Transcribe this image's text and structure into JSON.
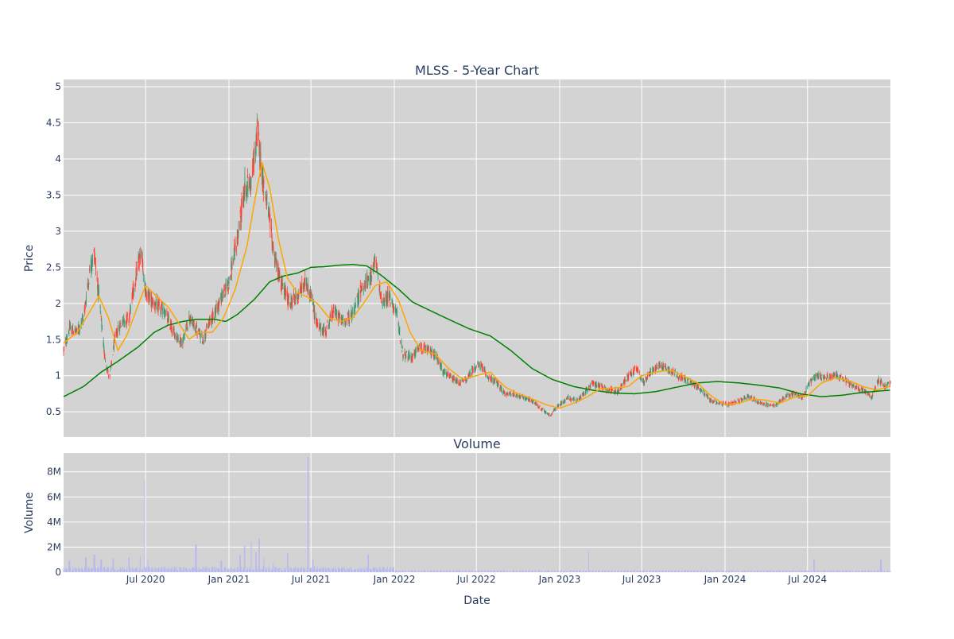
{
  "chart_data": [
    {
      "type": "candlestick",
      "title": "MLSS - 5-Year Chart",
      "xlabel": "",
      "ylabel": "Price",
      "ylim": [
        0.15,
        5.1
      ],
      "x_range": [
        "2020-01-02",
        "2024-12-31"
      ],
      "y_ticks": [
        "0.5",
        "1",
        "1.5",
        "2",
        "2.5",
        "3",
        "3.5",
        "4",
        "4.5",
        "5"
      ],
      "grid": true,
      "legend": "none",
      "colors": {
        "plot_bg": "#d3d3d3",
        "grid": "#ffffff",
        "increasing": "#3d9970",
        "decreasing": "#ff4136",
        "ma_short": "#ffa500",
        "ma_long": "#008000"
      },
      "price_anchors": [
        [
          "2020-01-02",
          1.35
        ],
        [
          "2020-01-15",
          1.65
        ],
        [
          "2020-02-01",
          1.6
        ],
        [
          "2020-02-15",
          1.8
        ],
        [
          "2020-03-01",
          2.5
        ],
        [
          "2020-03-10",
          2.7
        ],
        [
          "2020-03-20",
          2.1
        ],
        [
          "2020-04-01",
          1.3
        ],
        [
          "2020-04-12",
          0.95
        ],
        [
          "2020-04-25",
          1.55
        ],
        [
          "2020-05-10",
          1.75
        ],
        [
          "2020-05-25",
          1.8
        ],
        [
          "2020-06-10",
          2.4
        ],
        [
          "2020-06-22",
          2.75
        ],
        [
          "2020-07-01",
          2.15
        ],
        [
          "2020-07-20",
          2.0
        ],
        [
          "2020-08-10",
          1.9
        ],
        [
          "2020-09-01",
          1.6
        ],
        [
          "2020-09-20",
          1.45
        ],
        [
          "2020-10-05",
          1.8
        ],
        [
          "2020-10-20",
          1.65
        ],
        [
          "2020-11-05",
          1.5
        ],
        [
          "2020-11-20",
          1.75
        ],
        [
          "2020-12-10",
          2.0
        ],
        [
          "2021-01-01",
          2.3
        ],
        [
          "2021-01-20",
          2.9
        ],
        [
          "2021-02-05",
          3.6
        ],
        [
          "2021-02-20",
          3.7
        ],
        [
          "2021-03-05",
          4.4
        ],
        [
          "2021-03-15",
          3.8
        ],
        [
          "2021-03-28",
          3.3
        ],
        [
          "2021-04-10",
          2.7
        ],
        [
          "2021-04-25",
          2.3
        ],
        [
          "2021-05-15",
          2.0
        ],
        [
          "2021-06-01",
          2.1
        ],
        [
          "2021-06-20",
          2.3
        ],
        [
          "2021-07-01",
          2.1
        ],
        [
          "2021-07-15",
          1.7
        ],
        [
          "2021-08-01",
          1.6
        ],
        [
          "2021-08-20",
          1.9
        ],
        [
          "2021-09-10",
          1.75
        ],
        [
          "2021-10-01",
          1.85
        ],
        [
          "2021-10-20",
          2.2
        ],
        [
          "2021-11-05",
          2.3
        ],
        [
          "2021-11-20",
          2.6
        ],
        [
          "2021-12-05",
          2.0
        ],
        [
          "2021-12-20",
          2.1
        ],
        [
          "2022-01-05",
          1.9
        ],
        [
          "2022-01-20",
          1.3
        ],
        [
          "2022-02-10",
          1.25
        ],
        [
          "2022-02-25",
          1.4
        ],
        [
          "2022-03-15",
          1.35
        ],
        [
          "2022-04-01",
          1.3
        ],
        [
          "2022-04-20",
          1.05
        ],
        [
          "2022-05-10",
          0.95
        ],
        [
          "2022-05-25",
          0.9
        ],
        [
          "2022-06-10",
          0.95
        ],
        [
          "2022-06-25",
          1.1
        ],
        [
          "2022-07-10",
          1.15
        ],
        [
          "2022-07-25",
          1.0
        ],
        [
          "2022-08-15",
          0.9
        ],
        [
          "2022-09-01",
          0.75
        ],
        [
          "2022-09-20",
          0.75
        ],
        [
          "2022-10-10",
          0.7
        ],
        [
          "2022-11-01",
          0.65
        ],
        [
          "2022-11-20",
          0.55
        ],
        [
          "2022-12-10",
          0.45
        ],
        [
          "2023-01-01",
          0.6
        ],
        [
          "2023-01-20",
          0.7
        ],
        [
          "2023-02-10",
          0.65
        ],
        [
          "2023-03-01",
          0.8
        ],
        [
          "2023-03-15",
          0.9
        ],
        [
          "2023-04-01",
          0.85
        ],
        [
          "2023-04-20",
          0.8
        ],
        [
          "2023-05-10",
          0.78
        ],
        [
          "2023-06-01",
          1.0
        ],
        [
          "2023-06-20",
          1.1
        ],
        [
          "2023-07-05",
          0.9
        ],
        [
          "2023-07-20",
          1.05
        ],
        [
          "2023-08-10",
          1.15
        ],
        [
          "2023-08-25",
          1.1
        ],
        [
          "2023-09-10",
          1.05
        ],
        [
          "2023-10-01",
          0.95
        ],
        [
          "2023-10-20",
          0.9
        ],
        [
          "2023-11-10",
          0.8
        ],
        [
          "2023-12-01",
          0.65
        ],
        [
          "2023-12-20",
          0.62
        ],
        [
          "2024-01-10",
          0.6
        ],
        [
          "2024-02-01",
          0.65
        ],
        [
          "2024-02-20",
          0.72
        ],
        [
          "2024-03-10",
          0.65
        ],
        [
          "2024-04-01",
          0.6
        ],
        [
          "2024-04-20",
          0.58
        ],
        [
          "2024-05-10",
          0.7
        ],
        [
          "2024-06-01",
          0.75
        ],
        [
          "2024-06-20",
          0.7
        ],
        [
          "2024-07-05",
          0.9
        ],
        [
          "2024-07-20",
          1.0
        ],
        [
          "2024-08-10",
          0.98
        ],
        [
          "2024-09-01",
          1.0
        ],
        [
          "2024-09-20",
          0.95
        ],
        [
          "2024-10-10",
          0.85
        ],
        [
          "2024-11-01",
          0.8
        ],
        [
          "2024-11-20",
          0.7
        ],
        [
          "2024-12-05",
          0.95
        ],
        [
          "2024-12-20",
          0.85
        ],
        [
          "2024-12-31",
          0.9
        ]
      ],
      "ma_short_anchors": [
        [
          "2020-01-02",
          1.45
        ],
        [
          "2020-02-01",
          1.6
        ],
        [
          "2020-03-01",
          1.9
        ],
        [
          "2020-03-20",
          2.1
        ],
        [
          "2020-04-10",
          1.8
        ],
        [
          "2020-05-01",
          1.35
        ],
        [
          "2020-05-20",
          1.55
        ],
        [
          "2020-06-10",
          1.9
        ],
        [
          "2020-07-01",
          2.25
        ],
        [
          "2020-07-25",
          2.1
        ],
        [
          "2020-08-20",
          1.95
        ],
        [
          "2020-09-15",
          1.7
        ],
        [
          "2020-10-05",
          1.5
        ],
        [
          "2020-10-25",
          1.6
        ],
        [
          "2020-11-25",
          1.6
        ],
        [
          "2020-12-20",
          1.8
        ],
        [
          "2021-01-15",
          2.2
        ],
        [
          "2021-02-10",
          2.8
        ],
        [
          "2021-03-01",
          3.5
        ],
        [
          "2021-03-15",
          3.95
        ],
        [
          "2021-04-01",
          3.6
        ],
        [
          "2021-04-20",
          2.9
        ],
        [
          "2021-05-10",
          2.35
        ],
        [
          "2021-06-01",
          2.15
        ],
        [
          "2021-06-20",
          2.1
        ],
        [
          "2021-07-15",
          2.0
        ],
        [
          "2021-08-10",
          1.8
        ],
        [
          "2021-09-05",
          1.75
        ],
        [
          "2021-10-01",
          1.8
        ],
        [
          "2021-10-25",
          2.0
        ],
        [
          "2021-11-20",
          2.25
        ],
        [
          "2021-12-15",
          2.3
        ],
        [
          "2022-01-10",
          2.05
        ],
        [
          "2022-02-05",
          1.6
        ],
        [
          "2022-03-01",
          1.35
        ],
        [
          "2022-04-01",
          1.3
        ],
        [
          "2022-05-01",
          1.1
        ],
        [
          "2022-06-01",
          0.95
        ],
        [
          "2022-07-01",
          1.0
        ],
        [
          "2022-08-01",
          1.05
        ],
        [
          "2022-09-01",
          0.85
        ],
        [
          "2022-10-01",
          0.75
        ],
        [
          "2022-11-01",
          0.68
        ],
        [
          "2022-12-01",
          0.6
        ],
        [
          "2023-01-01",
          0.55
        ],
        [
          "2023-02-01",
          0.62
        ],
        [
          "2023-03-01",
          0.7
        ],
        [
          "2023-04-01",
          0.82
        ],
        [
          "2023-05-01",
          0.83
        ],
        [
          "2023-06-01",
          0.85
        ],
        [
          "2023-07-01",
          1.0
        ],
        [
          "2023-08-01",
          1.05
        ],
        [
          "2023-09-01",
          1.08
        ],
        [
          "2023-10-01",
          1.0
        ],
        [
          "2023-11-01",
          0.9
        ],
        [
          "2023-12-01",
          0.72
        ],
        [
          "2024-01-01",
          0.6
        ],
        [
          "2024-02-01",
          0.62
        ],
        [
          "2024-03-01",
          0.68
        ],
        [
          "2024-04-01",
          0.66
        ],
        [
          "2024-05-01",
          0.62
        ],
        [
          "2024-06-01",
          0.7
        ],
        [
          "2024-07-01",
          0.72
        ],
        [
          "2024-08-01",
          0.9
        ],
        [
          "2024-09-01",
          0.97
        ],
        [
          "2024-10-01",
          0.93
        ],
        [
          "2024-11-01",
          0.85
        ],
        [
          "2024-12-01",
          0.8
        ],
        [
          "2024-12-31",
          0.86
        ]
      ],
      "ma_long_anchors": [
        [
          "2020-01-02",
          0.71
        ],
        [
          "2020-02-15",
          0.85
        ],
        [
          "2020-03-25",
          1.05
        ],
        [
          "2020-05-01",
          1.2
        ],
        [
          "2020-06-15",
          1.4
        ],
        [
          "2020-07-20",
          1.6
        ],
        [
          "2020-08-20",
          1.7
        ],
        [
          "2020-09-20",
          1.75
        ],
        [
          "2020-10-20",
          1.78
        ],
        [
          "2020-12-01",
          1.78
        ],
        [
          "2020-12-25",
          1.75
        ],
        [
          "2021-01-20",
          1.85
        ],
        [
          "2021-02-25",
          2.05
        ],
        [
          "2021-04-01",
          2.3
        ],
        [
          "2021-05-01",
          2.38
        ],
        [
          "2021-06-01",
          2.42
        ],
        [
          "2021-07-01",
          2.5
        ],
        [
          "2021-08-01",
          2.51
        ],
        [
          "2021-09-01",
          2.53
        ],
        [
          "2021-10-01",
          2.54
        ],
        [
          "2021-11-01",
          2.52
        ],
        [
          "2021-12-01",
          2.4
        ],
        [
          "2022-01-10",
          2.2
        ],
        [
          "2022-02-10",
          2.02
        ],
        [
          "2022-03-15",
          1.92
        ],
        [
          "2022-05-01",
          1.78
        ],
        [
          "2022-06-15",
          1.65
        ],
        [
          "2022-08-01",
          1.55
        ],
        [
          "2022-09-15",
          1.35
        ],
        [
          "2022-11-01",
          1.1
        ],
        [
          "2022-12-15",
          0.95
        ],
        [
          "2023-02-01",
          0.85
        ],
        [
          "2023-03-15",
          0.8
        ],
        [
          "2023-05-01",
          0.76
        ],
        [
          "2023-06-15",
          0.75
        ],
        [
          "2023-08-01",
          0.78
        ],
        [
          "2023-09-15",
          0.84
        ],
        [
          "2023-11-01",
          0.9
        ],
        [
          "2023-12-15",
          0.92
        ],
        [
          "2024-02-01",
          0.9
        ],
        [
          "2024-03-15",
          0.87
        ],
        [
          "2024-05-01",
          0.83
        ],
        [
          "2024-06-15",
          0.75
        ],
        [
          "2024-08-01",
          0.71
        ],
        [
          "2024-09-15",
          0.73
        ],
        [
          "2024-11-01",
          0.77
        ],
        [
          "2024-12-31",
          0.8
        ]
      ]
    },
    {
      "type": "bar",
      "title": "Volume",
      "xlabel": "Date",
      "ylabel": "Volume",
      "ylim": [
        0,
        9500000
      ],
      "x_range": [
        "2020-01-02",
        "2024-12-31"
      ],
      "y_ticks": [
        "0",
        "2M",
        "4M",
        "6M",
        "8M"
      ],
      "x_ticks": [
        "Jul 2020",
        "Jan 2021",
        "Jul 2021",
        "Jan 2022",
        "Jul 2022",
        "Jan 2023",
        "Jul 2023",
        "Jan 2024",
        "Jul 2024"
      ],
      "grid": true,
      "colors": {
        "plot_bg": "#d3d3d3",
        "grid": "#ffffff",
        "bar": "#b8b8f0"
      },
      "volume_spikes": [
        [
          "2020-01-15",
          900000
        ],
        [
          "2020-02-20",
          1200000
        ],
        [
          "2020-03-10",
          1400000
        ],
        [
          "2020-03-25",
          1000000
        ],
        [
          "2020-04-20",
          1100000
        ],
        [
          "2020-05-25",
          1200000
        ],
        [
          "2020-06-20",
          1300000
        ],
        [
          "2020-06-28",
          7300000
        ],
        [
          "2020-07-05",
          1000000
        ],
        [
          "2020-10-20",
          2200000
        ],
        [
          "2020-12-15",
          900000
        ],
        [
          "2021-01-25",
          1400000
        ],
        [
          "2021-02-05",
          2100000
        ],
        [
          "2021-02-20",
          2400000
        ],
        [
          "2021-03-01",
          1600000
        ],
        [
          "2021-03-08",
          2700000
        ],
        [
          "2021-03-20",
          1100000
        ],
        [
          "2021-04-10",
          800000
        ],
        [
          "2021-05-10",
          1500000
        ],
        [
          "2021-06-25",
          9200000
        ],
        [
          "2021-07-05",
          1000000
        ],
        [
          "2021-11-05",
          1400000
        ],
        [
          "2023-03-05",
          1700000
        ],
        [
          "2024-07-15",
          1000000
        ],
        [
          "2024-12-10",
          1000000
        ]
      ]
    }
  ]
}
